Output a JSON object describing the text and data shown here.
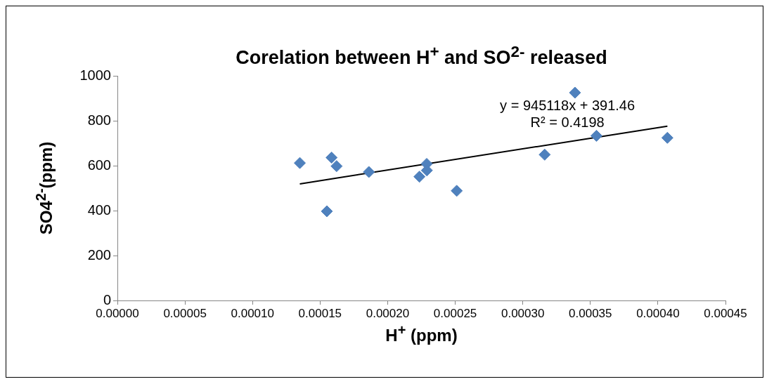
{
  "chart_data": {
    "type": "scatter",
    "title": "Corelation between H$^{+}$ and SO$^{2-}$ released",
    "xlabel": "H$^{+}$  (ppm)",
    "ylabel": "SO4$^{2-}$(ppm)",
    "series": [
      {
        "color": "#4f81bd",
        "marker": "diamond",
        "x": [
          0.000135,
          0.0001585,
          0.0001622,
          0.000155,
          0.0001861,
          0.0002289,
          0.000229,
          0.0002235,
          0.0002511,
          0.0003386,
          0.0003545,
          0.0003162,
          0.000407
        ],
        "values": [
          612,
          636,
          598,
          397,
          572,
          608,
          579,
          551,
          488,
          925,
          733,
          649,
          724
        ]
      },
      {
        "type": "line",
        "color": "#000000",
        "marker": "none",
        "x": [
          0.000135,
          0.000407
        ],
        "values": [
          519,
          776
        ]
      }
    ],
    "annotations": [
      "y = 945118x + 391.46",
      "R² = 0.4198"
    ],
    "xlim": [
      0,
      0.00045
    ],
    "xticks": [
      {
        "value": 0,
        "label": "0.00000"
      },
      {
        "value": 5e-05,
        "label": "0.00005"
      },
      {
        "value": 0.0001,
        "label": "0.00010"
      },
      {
        "value": 0.00015,
        "label": "0.00015"
      },
      {
        "value": 0.0002,
        "label": "0.00020"
      },
      {
        "value": 0.00025,
        "label": "0.00025"
      },
      {
        "value": 0.0003,
        "label": "0.00030"
      },
      {
        "value": 0.00035,
        "label": "0.00035"
      },
      {
        "value": 0.0004,
        "label": "0.00040"
      },
      {
        "value": 0.00045,
        "label": "0.00045"
      }
    ],
    "ylim": [
      0,
      1000
    ],
    "yticks": [
      0,
      200,
      400,
      600,
      800,
      1000
    ],
    "grid": false,
    "legend": false
  }
}
